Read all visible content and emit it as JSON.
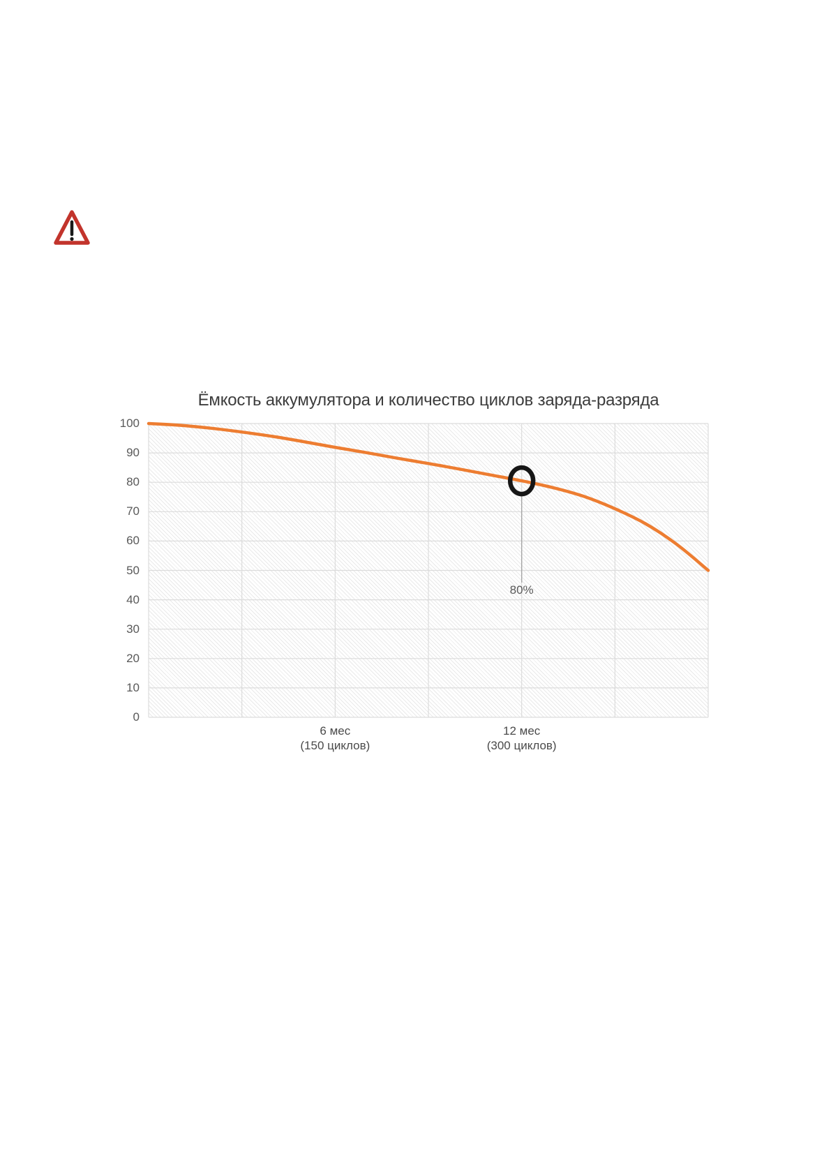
{
  "page": {
    "background": "#ffffff"
  },
  "warning_icon": {
    "label": "warning-triangle",
    "color": "#C2342C",
    "mark_color": "#1a1a1a"
  },
  "chart_data": {
    "type": "line",
    "title": "Ёмкость аккумулятора и количество циклов заряда-разряда",
    "xlabel": "",
    "ylabel": "",
    "x_months": [
      0,
      1,
      2,
      3,
      4,
      5,
      6,
      7,
      8,
      9,
      10,
      11,
      12,
      13,
      14,
      15,
      16,
      17,
      18
    ],
    "series": [
      {
        "name": "Ёмкость аккумулятора, %",
        "values": [
          100,
          99.4,
          98.4,
          97.1,
          95.6,
          93.8,
          91.9,
          90.1,
          88.2,
          86.4,
          84.5,
          82.5,
          80.5,
          78.2,
          75.2,
          71.0,
          65.8,
          58.8,
          50.0
        ]
      }
    ],
    "ylim": [
      0,
      100
    ],
    "xlim": [
      0,
      18
    ],
    "y_ticks": [
      100,
      90,
      80,
      70,
      60,
      50,
      40,
      30,
      20,
      10,
      0
    ],
    "x_ticks": [
      {
        "month": 6,
        "line1": "6 мес",
        "line2": "(150 циклов)"
      },
      {
        "month": 12,
        "line1": "12 мес",
        "line2": "(300 циклов)"
      }
    ],
    "grid": {
      "show": true,
      "h_value_interval": 10,
      "v_month_interval": 3
    },
    "legend": {
      "show": false
    },
    "annotation": {
      "month": 12,
      "value": 80.5,
      "label": "80%"
    },
    "colors": {
      "line": "#ED7D31",
      "grid": "#DCDCDC",
      "tick_text": "#595959",
      "title_text": "#3C3C3C",
      "annotation_ring": "#161616",
      "leader_line": "#A6A6A6"
    }
  }
}
